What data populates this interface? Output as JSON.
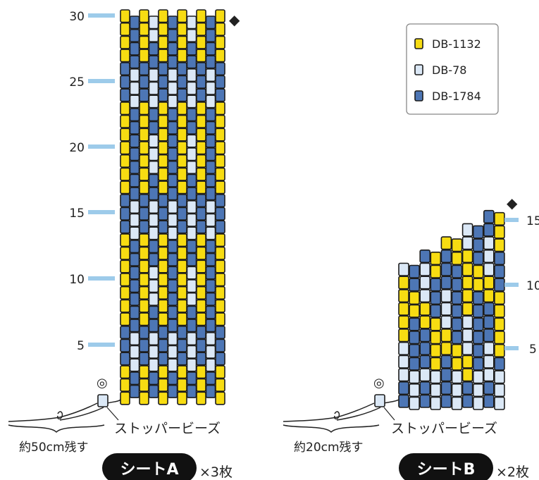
{
  "legend": {
    "items": [
      {
        "code": "DB-1132",
        "color": "#f7dc12"
      },
      {
        "code": "DB-78",
        "color": "#dbe8f6"
      },
      {
        "code": "DB-1784",
        "color": "#4d76b5"
      }
    ]
  },
  "colors": {
    "bead_outline": "#1c1c1c",
    "row_marker": "#9dcbea",
    "legend_border": "#888888",
    "title_pill": "#111111",
    "title_text": "#ffffff"
  },
  "sheet_a": {
    "title": "シートA",
    "count": "×3枚",
    "stopper_label": "ストッパービーズ",
    "tail_label": "約50cm残す",
    "start_symbol": "◎",
    "end_symbol": "◆",
    "row_numbers": [
      "5",
      "10",
      "15",
      "20",
      "25",
      "30"
    ],
    "columns": 11,
    "rows": 30
  },
  "sheet_b": {
    "title": "シートB",
    "count": "×2枚",
    "stopper_label": "ストッパービーズ",
    "tail_label": "約20cm残す",
    "start_symbol": "◎",
    "end_symbol": "◆",
    "row_numbers": [
      "5",
      "10",
      "15"
    ],
    "columns": 10,
    "rows": 16
  }
}
